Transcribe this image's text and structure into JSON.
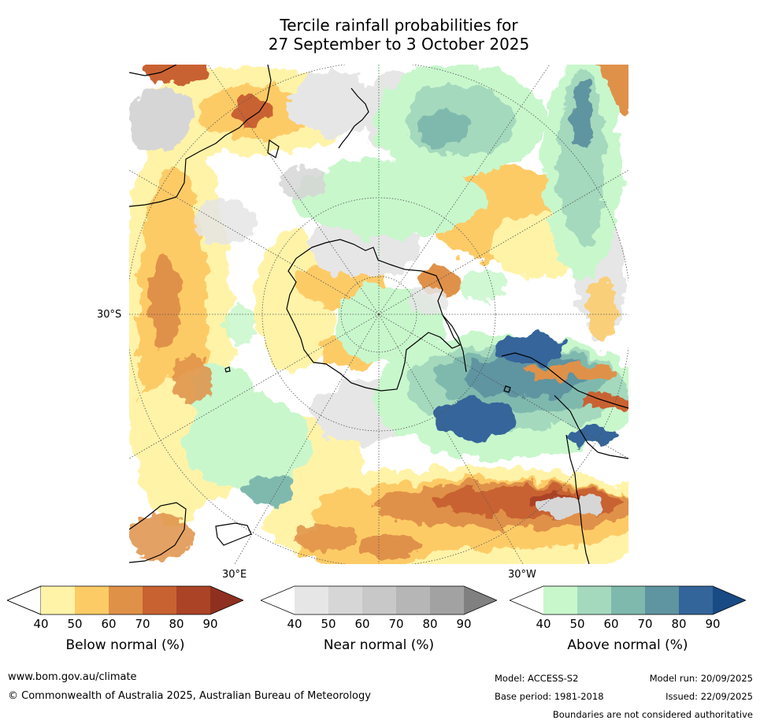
{
  "title": {
    "line1": "Tercile rainfall probabilities for",
    "line2": "27 September to 3 October 2025"
  },
  "map": {
    "lat_label": "30°S",
    "lon_labels": [
      "30°E",
      "30°W"
    ]
  },
  "colorbars": [
    {
      "name": "below-normal",
      "title": "Below normal (%)",
      "ticks": [
        "40",
        "50",
        "60",
        "70",
        "80",
        "90"
      ],
      "colors": [
        "#fff3a8",
        "#fdcb66",
        "#e09148",
        "#c96231",
        "#ab4327",
        "#8f2f1f"
      ]
    },
    {
      "name": "near-normal",
      "title": "Near normal (%)",
      "ticks": [
        "40",
        "50",
        "60",
        "70",
        "80",
        "90"
      ],
      "colors": [
        "#e6e6e6",
        "#d6d6d6",
        "#c8c8c8",
        "#b6b6b6",
        "#a2a2a2",
        "#808080"
      ]
    },
    {
      "name": "above-normal",
      "title": "Above normal (%)",
      "ticks": [
        "40",
        "50",
        "60",
        "70",
        "80",
        "90"
      ],
      "colors": [
        "#c8f7cc",
        "#a4d9bd",
        "#7fb9ae",
        "#5f94a1",
        "#34659a",
        "#184a84"
      ]
    }
  ],
  "footer": {
    "website": "www.bom.gov.au/climate",
    "copyright": "© Commonwealth of Australia 2025, Australian Bureau of Meteorology",
    "model": "Model: ACCESS-S2",
    "base_period": "Base period: 1981-2018",
    "model_run": "Model run: 20/09/2025",
    "issued": "Issued: 22/09/2025",
    "disclaimer": "Boundaries are not considered authoritative"
  }
}
